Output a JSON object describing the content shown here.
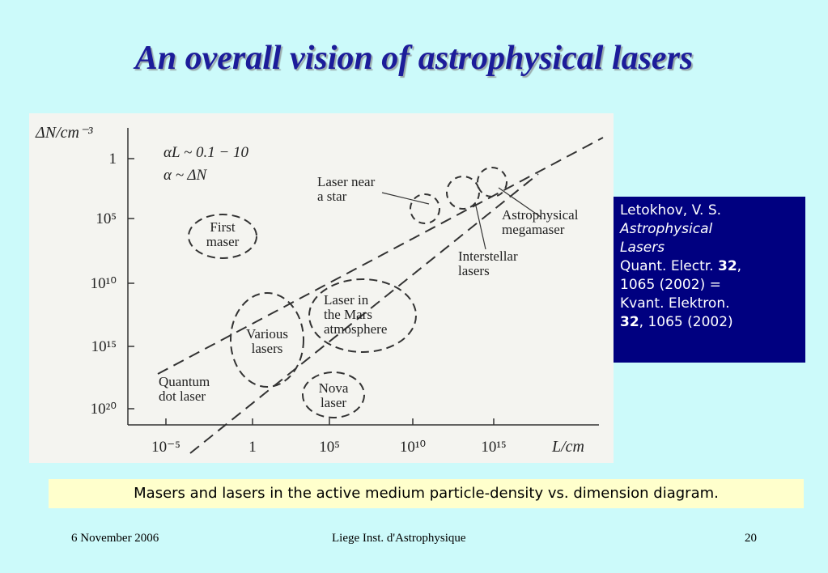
{
  "title": "An overall vision of astrophysical lasers",
  "figure": {
    "y_axis_label": "ΔN/cm⁻³",
    "x_axis_label": "L/cm",
    "y_ticks": [
      "1",
      "10⁵",
      "10¹⁰",
      "10¹⁵",
      "10²⁰"
    ],
    "x_ticks": [
      "10⁻⁵",
      "1",
      "10⁵",
      "10¹⁰",
      "10¹⁵"
    ],
    "formulas": [
      "αL ~ 0.1 − 10",
      "α ~ ΔN"
    ],
    "regions": [
      [
        "First",
        "maser"
      ],
      [
        "Various",
        "lasers"
      ],
      [
        "Laser in",
        "the Mars",
        "atmosphere"
      ],
      [
        "Nova",
        "laser"
      ],
      [
        "Quantum",
        "dot laser"
      ],
      [
        "Laser near",
        "a star"
      ],
      [
        "Astrophysical",
        "megamaser"
      ],
      [
        "Interstellar",
        "lasers"
      ]
    ]
  },
  "reference": {
    "author": "Letokhov, V. S.",
    "title_lines": [
      "Astrophysical",
      "Lasers"
    ],
    "journal": "Quant. Electr. ",
    "volume": "32",
    "citation": "1065  (2002)  =",
    "journal2": "Kvant. Elektron.",
    "volume2": "32",
    "citation2": ", 1065  (2002)"
  },
  "caption": "Masers and lasers in the active medium particle-density vs. dimension diagram.",
  "footer": {
    "date": "6 November 2006",
    "institution": "Liege Inst. d'Astrophysique",
    "page": "20"
  }
}
